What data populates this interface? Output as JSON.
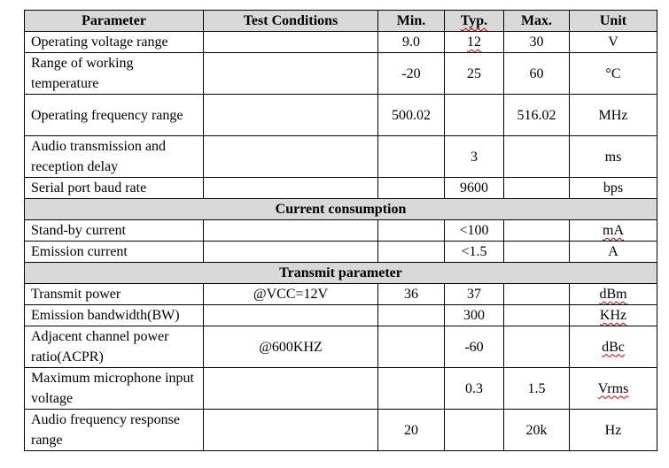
{
  "headers": {
    "parameter": "Parameter",
    "conditions": "Test Conditions",
    "min": "Min.",
    "typ": "Typ.",
    "max": "Max.",
    "unit": "Unit"
  },
  "rows": {
    "voltage": {
      "parameter": "Operating voltage range",
      "conditions": "",
      "min": "9.0",
      "typ": "12",
      "max": "30",
      "unit": "V"
    },
    "temperature": {
      "parameter": "Range of working temperature",
      "conditions": "",
      "min": "-20",
      "typ": "25",
      "max": "60",
      "unit": "°C"
    },
    "frequency": {
      "parameter": "Operating frequency range",
      "conditions": "",
      "min": "500.02",
      "typ": "",
      "max": "516.02",
      "unit": "MHz"
    },
    "delay": {
      "parameter": "Audio transmission and reception delay",
      "conditions": "",
      "min": "",
      "typ": "3",
      "max": "",
      "unit": "ms"
    },
    "baud": {
      "parameter": "Serial port baud rate",
      "conditions": "",
      "min": "",
      "typ": "9600",
      "max": "",
      "unit": "bps"
    },
    "standby": {
      "parameter": "Stand-by current",
      "conditions": "",
      "min": "",
      "typ": "<100",
      "max": "",
      "unit": "mA"
    },
    "emission_current": {
      "parameter": "Emission current",
      "conditions": "",
      "min": "",
      "typ": "<1.5",
      "max": "",
      "unit": "A"
    },
    "tx_power": {
      "parameter": "Transmit power",
      "conditions": "@VCC=12V",
      "min": "36",
      "typ": "37",
      "max": "",
      "unit": "dBm"
    },
    "bandwidth": {
      "parameter": "Emission bandwidth(BW)",
      "conditions": "",
      "min": "",
      "typ": "300",
      "max": "",
      "unit": "KHz"
    },
    "acpr": {
      "parameter": "Adjacent channel power ratio(ACPR)",
      "conditions": "@600KHZ",
      "min": "",
      "typ": "-60",
      "max": "",
      "unit": "dBc"
    },
    "mic": {
      "parameter": "Maximum microphone input voltage",
      "conditions": "",
      "min": "",
      "typ": "0.3",
      "max": "1.5",
      "unit": "Vrms"
    },
    "audio_freq": {
      "parameter": "Audio frequency response range",
      "conditions": "",
      "min": "20",
      "typ": "",
      "max": "20k",
      "unit": "Hz"
    }
  },
  "sections": {
    "current": "Current consumption",
    "transmit": "Transmit parameter"
  }
}
